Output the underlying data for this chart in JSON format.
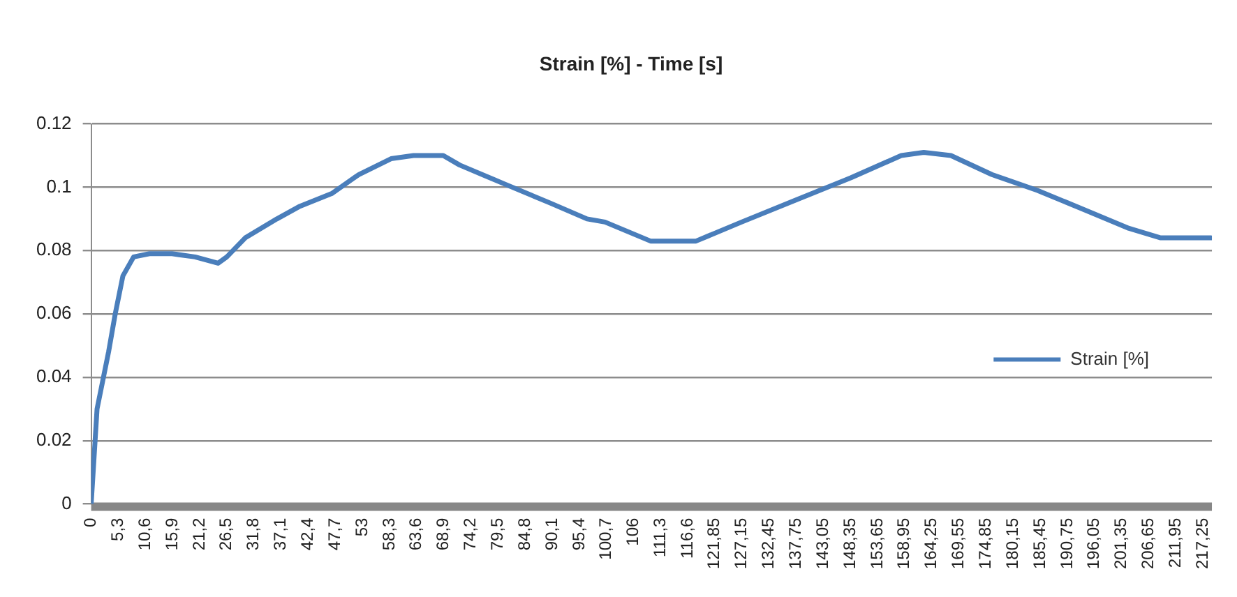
{
  "chart_data": {
    "type": "line",
    "title": "Strain [%] - Time [s]",
    "x": [
      0,
      1.15,
      3.4,
      4.7,
      6.2,
      8.3,
      11.4,
      15.8,
      20.3,
      24.8,
      26.5,
      30.1,
      36.3,
      40.8,
      47,
      52.3,
      58.6,
      63,
      68.8,
      72,
      80.8,
      89.7,
      96.9,
      100.4,
      109.3,
      118.2,
      127.1,
      137.8,
      148.5,
      158.3,
      162.7,
      168,
      176,
      184.9,
      193.9,
      202.8,
      209,
      218.8
    ],
    "series": [
      {
        "name": "Strain [%]",
        "color": "#4a7ebb",
        "values": [
          0,
          0.03,
          0.048,
          0.06,
          0.072,
          0.078,
          0.079,
          0.079,
          0.078,
          0.076,
          0.078,
          0.084,
          0.09,
          0.094,
          0.098,
          0.104,
          0.109,
          0.11,
          0.11,
          0.107,
          0.101,
          0.095,
          0.09,
          0.089,
          0.083,
          0.083,
          0.089,
          0.096,
          0.103,
          0.11,
          0.111,
          0.11,
          0.104,
          0.099,
          0.093,
          0.087,
          0.084,
          0.084
        ]
      }
    ],
    "xlim": [
      0,
      219
    ],
    "xticks": [
      0,
      {
        "value": 5.3,
        "label": "5,3"
      },
      {
        "value": 10.6,
        "label": "10,6"
      },
      {
        "value": 15.9,
        "label": "15,9"
      },
      {
        "value": 21.2,
        "label": "21,2"
      },
      {
        "value": 26.5,
        "label": "26,5"
      },
      {
        "value": 31.8,
        "label": "31,8"
      },
      {
        "value": 37.1,
        "label": "37,1"
      },
      {
        "value": 42.4,
        "label": "42,4"
      },
      {
        "value": 47.7,
        "label": "47,7"
      },
      53,
      {
        "value": 58.3,
        "label": "58,3"
      },
      {
        "value": 63.6,
        "label": "63,6"
      },
      {
        "value": 68.9,
        "label": "68,9"
      },
      {
        "value": 74.2,
        "label": "74,2"
      },
      {
        "value": 79.5,
        "label": "79,5"
      },
      {
        "value": 84.8,
        "label": "84,8"
      },
      {
        "value": 90.1,
        "label": "90,1"
      },
      {
        "value": 95.4,
        "label": "95,4"
      },
      {
        "value": 100.7,
        "label": "100,7"
      },
      106,
      {
        "value": 111.3,
        "label": "111,3"
      },
      {
        "value": 116.6,
        "label": "116,6"
      },
      {
        "value": 121.85,
        "label": "121,85"
      },
      {
        "value": 127.15,
        "label": "127,15"
      },
      {
        "value": 132.45,
        "label": "132,45"
      },
      {
        "value": 137.75,
        "label": "137,75"
      },
      {
        "value": 143.05,
        "label": "143,05"
      },
      {
        "value": 148.35,
        "label": "148,35"
      },
      {
        "value": 153.65,
        "label": "153,65"
      },
      {
        "value": 158.95,
        "label": "158,95"
      },
      {
        "value": 164.25,
        "label": "164,25"
      },
      {
        "value": 169.55,
        "label": "169,55"
      },
      {
        "value": 174.85,
        "label": "174,85"
      },
      {
        "value": 180.15,
        "label": "180,15"
      },
      {
        "value": 185.45,
        "label": "185,45"
      },
      {
        "value": 190.75,
        "label": "190,75"
      },
      {
        "value": 196.05,
        "label": "196,05"
      },
      {
        "value": 201.35,
        "label": "201,35"
      },
      {
        "value": 206.65,
        "label": "206,65"
      },
      {
        "value": 211.95,
        "label": "211,95"
      },
      {
        "value": 217.25,
        "label": "217,25"
      }
    ],
    "ylim": [
      0,
      0.12
    ],
    "yticks": [
      0,
      0.02,
      0.04,
      0.06,
      0.08,
      0.1,
      0.12
    ],
    "grid": "y",
    "legend": "right",
    "marker": "none",
    "line_style": "solid"
  }
}
